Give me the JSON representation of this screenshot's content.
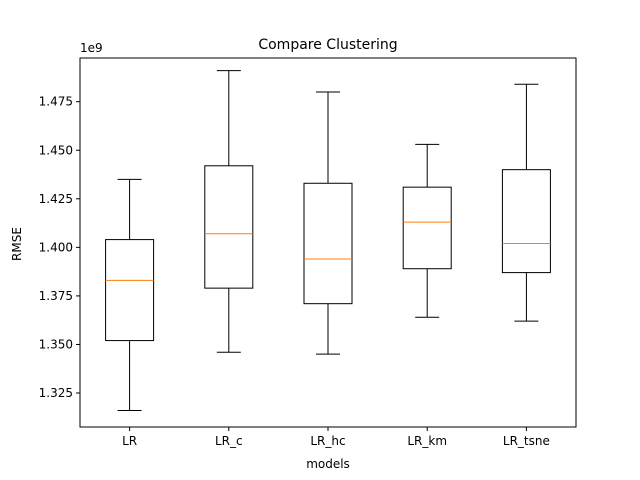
{
  "chart_data": {
    "type": "boxplot",
    "title": "Compare Clustering",
    "xlabel": "models",
    "ylabel": "RMSE",
    "y_offset_label": "1e9",
    "ylim": [
      1.3075,
      1.4975
    ],
    "y_ticks": [
      1.325,
      1.35,
      1.375,
      1.4,
      1.425,
      1.45,
      1.475
    ],
    "y_tick_labels": [
      "1.325",
      "1.350",
      "1.375",
      "1.400",
      "1.425",
      "1.450",
      "1.475"
    ],
    "categories": [
      "LR",
      "LR_c",
      "LR_hc",
      "LR_km",
      "LR_tsne"
    ],
    "boxes": [
      {
        "name": "LR",
        "whisker_low": 1.316,
        "q1": 1.352,
        "median": 1.383,
        "q3": 1.404,
        "whisker_high": 1.435
      },
      {
        "name": "LR_c",
        "whisker_low": 1.346,
        "q1": 1.379,
        "median": 1.407,
        "q3": 1.442,
        "whisker_high": 1.491
      },
      {
        "name": "LR_hc",
        "whisker_low": 1.345,
        "q1": 1.371,
        "median": 1.394,
        "q3": 1.433,
        "whisker_high": 1.48
      },
      {
        "name": "LR_km",
        "whisker_low": 1.364,
        "q1": 1.389,
        "median": 1.413,
        "q3": 1.431,
        "whisker_high": 1.453
      },
      {
        "name": "LR_tsne",
        "whisker_low": 1.362,
        "q1": 1.387,
        "median": 1.402,
        "q3": 1.44,
        "whisker_high": 1.484
      }
    ],
    "colors": {
      "box": "#000000",
      "median": "#ff7f0e"
    }
  }
}
